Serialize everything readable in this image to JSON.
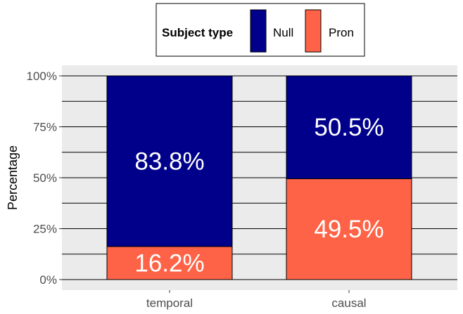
{
  "chart_data": {
    "type": "bar",
    "stacked": true,
    "percent": true,
    "categories": [
      "temporal",
      "causal"
    ],
    "series": [
      {
        "name": "Null",
        "color": "#00008b",
        "values": [
          83.8,
          50.5
        ],
        "labels": [
          "83.8%",
          "50.5%"
        ]
      },
      {
        "name": "Pron",
        "color": "#ff6347",
        "values": [
          16.2,
          49.5
        ],
        "labels": [
          "16.2%",
          "49.5%"
        ]
      }
    ],
    "xlabel": "",
    "ylabel": "Percentage",
    "ylim": [
      0,
      100
    ],
    "yticks": [
      0,
      25,
      50,
      75,
      100
    ],
    "ytick_labels": [
      "0%",
      "25%",
      "50%",
      "75%",
      "100%"
    ],
    "legend": {
      "title": "Subject type",
      "position": "top"
    },
    "panel_background": "#ebebeb",
    "grid": true
  }
}
